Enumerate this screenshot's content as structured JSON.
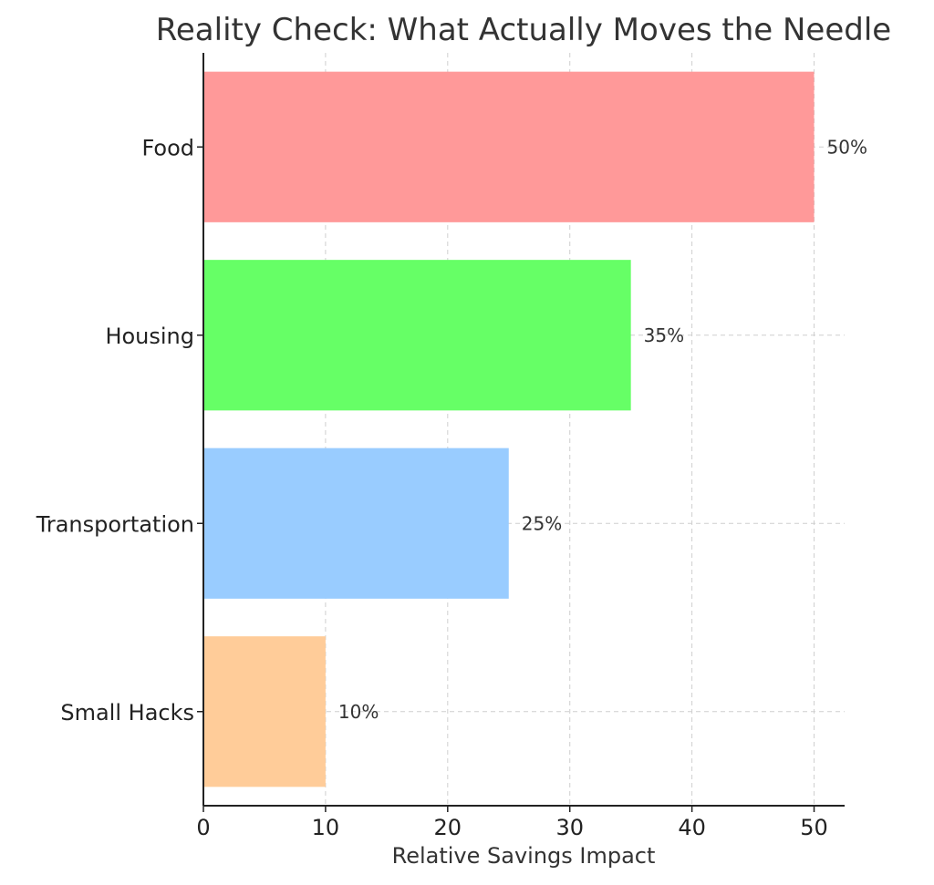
{
  "chart_data": {
    "type": "bar",
    "orientation": "horizontal",
    "title": "Reality Check: What Actually Moves the Needle",
    "xlabel": "Relative Savings Impact",
    "ylabel": "",
    "categories": [
      "Food",
      "Housing",
      "Transportation",
      "Small Hacks"
    ],
    "values": [
      50,
      35,
      25,
      10
    ],
    "data_labels": [
      "50%",
      "35%",
      "25%",
      "10%"
    ],
    "colors": [
      "#ff9999",
      "#66ff66",
      "#99ccff",
      "#ffcc99"
    ],
    "xlim": [
      0,
      52.5
    ],
    "xticks": [
      0,
      10,
      20,
      30,
      40,
      50
    ],
    "xtick_labels": [
      "0",
      "10",
      "20",
      "30",
      "40",
      "50"
    ],
    "grid": true,
    "legend": "none"
  }
}
